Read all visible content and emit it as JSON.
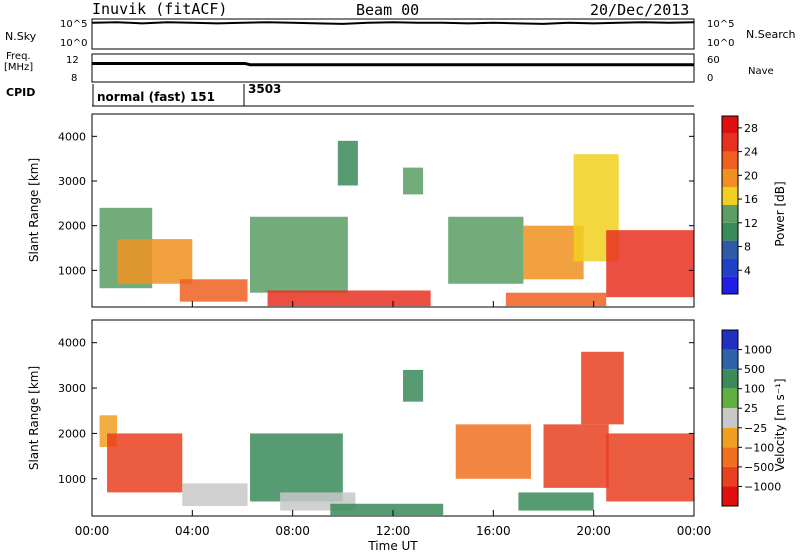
{
  "header": {
    "station": "Inuvik (fitACF)",
    "beam": "Beam 00",
    "date": "20/Dec/2013"
  },
  "aux": {
    "nsky_label": "N.Sky",
    "nsky_ticks": [
      "10^5",
      "10^0"
    ],
    "nsearch_label": "N.Search",
    "nsearch_ticks": [
      "10^5",
      "10^0"
    ],
    "freq_label_1": "Freq.",
    "freq_label_2": "[MHz]",
    "freq_ticks": [
      "12",
      "8"
    ],
    "nave_label": "Nave",
    "nave_ticks": [
      "60",
      "0"
    ],
    "cpid_label": "CPID",
    "cpid_1": "normal (fast) 151",
    "cpid_2": "3503"
  },
  "colors": {
    "power_scale": [
      "#1e1ee6",
      "#2040c8",
      "#2e5aa6",
      "#3a8a5a",
      "#5a9e64",
      "#f0d020",
      "#f09020",
      "#f06020",
      "#e83020",
      "#e01010"
    ],
    "velocity_scale": [
      "#2030c0",
      "#2e62a8",
      "#3a8a5a",
      "#60b040",
      "#c8c8c8",
      "#f0a020",
      "#f07020",
      "#e84020",
      "#e01010"
    ]
  },
  "chart_data": [
    {
      "type": "line",
      "title": "N.Sky / N.Search",
      "xlabel": "",
      "ylabel": "N.Sky",
      "x_range_hours": [
        0,
        24
      ],
      "ylim_log10": [
        0,
        5
      ],
      "series": [
        {
          "name": "N.Sky",
          "x": [
            0,
            1,
            2,
            3,
            4,
            5,
            6,
            7,
            8,
            9,
            10,
            11,
            12,
            13,
            14,
            15,
            16,
            17,
            18,
            19,
            20,
            21,
            22,
            23,
            24
          ],
          "values_log10": [
            4.5,
            4.6,
            4.4,
            4.6,
            4.5,
            4.4,
            4.5,
            4.6,
            4.5,
            4.4,
            4.3,
            4.5,
            4.6,
            4.5,
            4.5,
            4.4,
            4.5,
            4.4,
            4.3,
            4.5,
            4.4,
            4.5,
            4.6,
            4.5,
            4.6
          ]
        }
      ]
    },
    {
      "type": "line",
      "title": "Freq / Nave",
      "xlabel": "",
      "ylabel": "Freq. [MHz]",
      "x_range_hours": [
        0,
        24
      ],
      "ylim": [
        8,
        12
      ],
      "series": [
        {
          "name": "Freq",
          "x": [
            0,
            6.1,
            6.3,
            24
          ],
          "values": [
            10.7,
            10.7,
            10.5,
            10.5
          ]
        }
      ]
    },
    {
      "type": "heatmap",
      "title": "Power",
      "xlabel": "",
      "ylabel": "Slant Range [km]",
      "x_range_hours": [
        0,
        24
      ],
      "ylim": [
        180,
        4500
      ],
      "yticks": [
        1000,
        2000,
        3000,
        4000
      ],
      "colorbar": {
        "label": "Power [dB]",
        "ticks": [
          4,
          8,
          12,
          16,
          20,
          24,
          28
        ],
        "range": [
          0,
          30
        ]
      },
      "echo_regions": [
        {
          "t": [
            0.3,
            2.4
          ],
          "r": [
            600,
            2400
          ],
          "value": 14
        },
        {
          "t": [
            1.0,
            4.0
          ],
          "r": [
            700,
            1700
          ],
          "value": 18
        },
        {
          "t": [
            3.5,
            6.2
          ],
          "r": [
            300,
            800
          ],
          "value": 22
        },
        {
          "t": [
            6.3,
            10.2
          ],
          "r": [
            500,
            2200
          ],
          "value": 12
        },
        {
          "t": [
            7.0,
            13.5
          ],
          "r": [
            200,
            550
          ],
          "value": 24
        },
        {
          "t": [
            9.8,
            10.6
          ],
          "r": [
            2900,
            3900
          ],
          "value": 10
        },
        {
          "t": [
            12.4,
            13.2
          ],
          "r": [
            2700,
            3300
          ],
          "value": 12
        },
        {
          "t": [
            14.2,
            17.2
          ],
          "r": [
            700,
            2200
          ],
          "value": 14
        },
        {
          "t": [
            17.2,
            19.6
          ],
          "r": [
            800,
            2000
          ],
          "value": 20
        },
        {
          "t": [
            16.5,
            20.5
          ],
          "r": [
            200,
            500
          ],
          "value": 22
        },
        {
          "t": [
            19.2,
            21.0
          ],
          "r": [
            1200,
            3600
          ],
          "value": 16
        },
        {
          "t": [
            20.5,
            24.0
          ],
          "r": [
            400,
            1900
          ],
          "value": 26
        }
      ]
    },
    {
      "type": "heatmap",
      "title": "Velocity",
      "xlabel": "Time UT",
      "ylabel": "Slant Range [km]",
      "x_range_hours": [
        0,
        24
      ],
      "xticks": [
        "00:00",
        "04:00",
        "08:00",
        "12:00",
        "16:00",
        "20:00",
        "00:00"
      ],
      "ylim": [
        180,
        4500
      ],
      "yticks": [
        1000,
        2000,
        3000,
        4000
      ],
      "colorbar": {
        "label": "Velocity [m s⁻¹]",
        "ticks": [
          "1000",
          "500",
          "100",
          "25",
          "−25",
          "−100",
          "−500",
          "−1000"
        ]
      },
      "echo_regions": [
        {
          "t": [
            0.3,
            1.0
          ],
          "r": [
            1700,
            2400
          ],
          "value": -25
        },
        {
          "t": [
            0.6,
            3.6
          ],
          "r": [
            700,
            2000
          ],
          "value": -300
        },
        {
          "t": [
            3.6,
            6.2
          ],
          "r": [
            400,
            900
          ],
          "value": 0
        },
        {
          "t": [
            6.3,
            10.0
          ],
          "r": [
            500,
            2000
          ],
          "value": 150
        },
        {
          "t": [
            7.5,
            10.5
          ],
          "r": [
            300,
            700
          ],
          "value": 0
        },
        {
          "t": [
            9.5,
            14.0
          ],
          "r": [
            200,
            450
          ],
          "value": 80
        },
        {
          "t": [
            12.4,
            13.2
          ],
          "r": [
            2700,
            3400
          ],
          "value": 200
        },
        {
          "t": [
            14.5,
            17.5
          ],
          "r": [
            1000,
            2200
          ],
          "value": -200
        },
        {
          "t": [
            17.0,
            20.0
          ],
          "r": [
            300,
            700
          ],
          "value": 80
        },
        {
          "t": [
            18.0,
            20.6
          ],
          "r": [
            800,
            2200
          ],
          "value": -300
        },
        {
          "t": [
            20.5,
            24.0
          ],
          "r": [
            500,
            2000
          ],
          "value": -700
        },
        {
          "t": [
            19.5,
            21.2
          ],
          "r": [
            2200,
            3800
          ],
          "value": -300
        }
      ]
    }
  ]
}
